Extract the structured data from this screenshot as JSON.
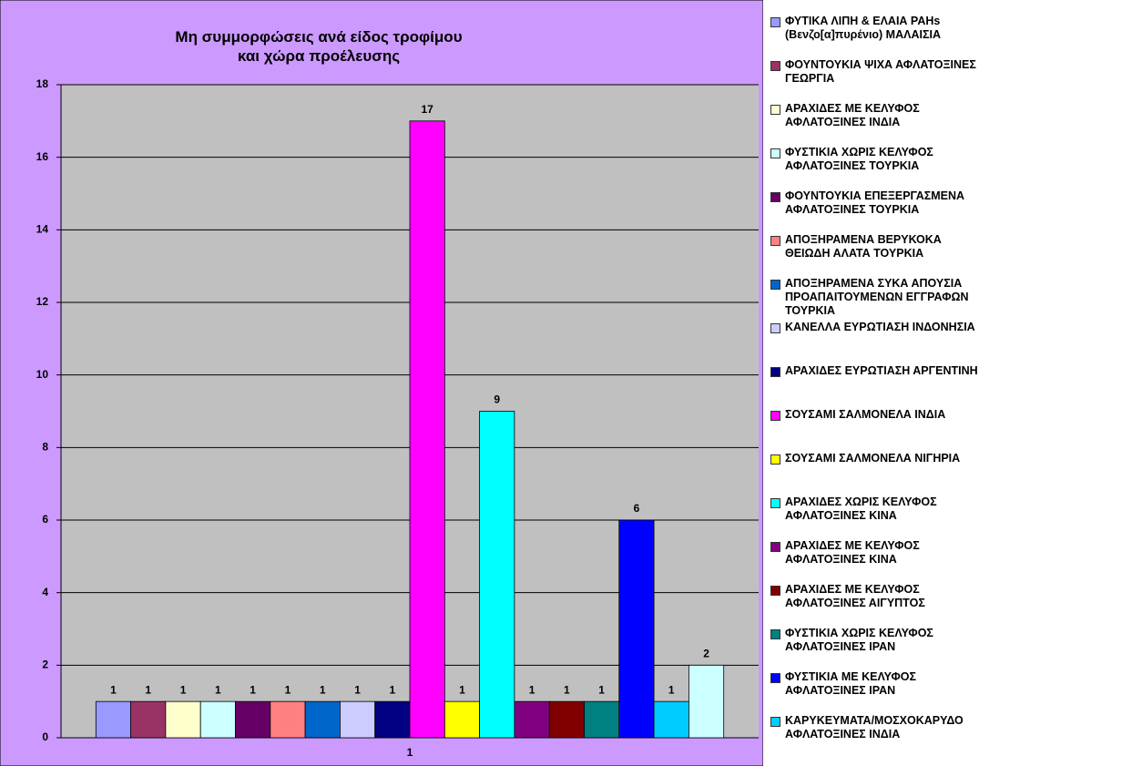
{
  "chart_data": {
    "type": "bar",
    "title": "Μη συμμορφώσεις ανά είδος τροφίμου\nκαι χώρα προέλευσης",
    "categories": [
      "1"
    ],
    "ylim": [
      0,
      18
    ],
    "yticks": [
      0,
      2,
      4,
      6,
      8,
      10,
      12,
      14,
      16,
      18
    ],
    "grid": true,
    "legend": "right",
    "series": [
      {
        "name": "ΦΥΤΙΚΑ ΛΙΠΗ & ΕΛΑΙΑ PAHs\n(Βενζο[α]πυρένιο) ΜΑΛΑΙΣΙΑ",
        "color": "#9999ff",
        "values": [
          1
        ]
      },
      {
        "name": "ΦΟΥΝΤΟΥΚΙΑ ΨΙΧΑ ΑΦΛΑΤΟΞΙΝΕΣ\nΓΕΩΡΓΙΑ",
        "color": "#993366",
        "values": [
          1
        ]
      },
      {
        "name": "ΑΡΑΧΙΔΕΣ ΜΕ ΚΕΛΥΦΟΣ\nΑΦΛΑΤΟΞΙΝΕΣ ΙΝΔΙΑ",
        "color": "#ffffcc",
        "values": [
          1
        ]
      },
      {
        "name": "ΦΥΣΤΙΚΙΑ ΧΩΡΙΣ ΚΕΛΥΦΟΣ\nΑΦΛΑΤΟΞΙΝΕΣ ΤΟΥΡΚΙΑ",
        "color": "#ccffff",
        "values": [
          1
        ]
      },
      {
        "name": "ΦΟΥΝΤΟΥΚΙΑ ΕΠΕΞΕΡΓΑΣΜΕΝΑ\nΑΦΛΑΤΟΞΙΝΕΣ ΤΟΥΡΚΙΑ",
        "color": "#660066",
        "values": [
          1
        ]
      },
      {
        "name": "ΑΠΟΞΗΡΑΜΕΝΑ ΒΕΡΥΚΟΚΑ\nΘΕΙΩΔΗ ΑΛΑΤΑ ΤΟΥΡΚΙΑ",
        "color": "#ff8080",
        "values": [
          1
        ]
      },
      {
        "name": "ΑΠΟΞΗΡΑΜΕΝΑ ΣΥΚΑ ΑΠΟΥΣΙΑ\nΠΡΟΑΠΑΙΤΟΥΜΕΝΩΝ ΕΓΓΡΑΦΩΝ\nΤΟΥΡΚΙΑ",
        "color": "#0066cc",
        "values": [
          1
        ]
      },
      {
        "name": "ΚΑΝΕΛΛΑ ΕΥΡΩΤΙΑΣΗ ΙΝΔΟΝΗΣΙΑ",
        "color": "#ccccff",
        "values": [
          1
        ]
      },
      {
        "name": "ΑΡΑΧΙΔΕΣ ΕΥΡΩΤΙΑΣΗ ΑΡΓΕΝΤΙΝΗ",
        "color": "#000080",
        "values": [
          1
        ]
      },
      {
        "name": "ΣΟΥΣΑΜΙ ΣΑΛΜΟΝΕΛΑ ΙΝΔΙΑ",
        "color": "#ff00ff",
        "values": [
          17
        ]
      },
      {
        "name": "ΣΟΥΣΑΜΙ ΣΑΛΜΟΝΕΛΑ ΝΙΓΗΡΙΑ",
        "color": "#ffff00",
        "values": [
          1
        ]
      },
      {
        "name": "ΑΡΑΧΙΔΕΣ ΧΩΡΙΣ ΚΕΛΥΦΟΣ\nΑΦΛΑΤΟΞΙΝΕΣ ΚΙΝΑ",
        "color": "#00ffff",
        "values": [
          9
        ]
      },
      {
        "name": "ΑΡΑΧΙΔΕΣ ΜΕ ΚΕΛΥΦΟΣ\nΑΦΛΑΤΟΞΙΝΕΣ ΚΙΝΑ",
        "color": "#800080",
        "values": [
          1
        ]
      },
      {
        "name": "ΑΡΑΧΙΔΕΣ ΜΕ ΚΕΛΥΦΟΣ\nΑΦΛΑΤΟΞΙΝΕΣ ΑΙΓΥΠΤΟΣ",
        "color": "#800000",
        "values": [
          1
        ]
      },
      {
        "name": "ΦΥΣΤΙΚΙΑ ΧΩΡΙΣ ΚΕΛΥΦΟΣ\nΑΦΛΑΤΟΞΙΝΕΣ ΙΡΑΝ",
        "color": "#008080",
        "values": [
          1
        ]
      },
      {
        "name": "ΦΥΣΤΙΚΙΑ ΜΕ ΚΕΛΥΦΟΣ\nΑΦΛΑΤΟΞΙΝΕΣ ΙΡΑΝ",
        "color": "#0000ff",
        "values": [
          6
        ]
      },
      {
        "name": "ΚΑΡΥΚΕΥΜΑΤΑ/ΜΟΣΧΟΚΑΡΥΔΟ\nΑΦΛΑΤΟΞΙΝΕΣ ΙΝΔΙΑ",
        "color": "#00ccff",
        "values": [
          1
        ]
      },
      {
        "color": "#ccffff",
        "values": [
          2
        ]
      }
    ]
  }
}
